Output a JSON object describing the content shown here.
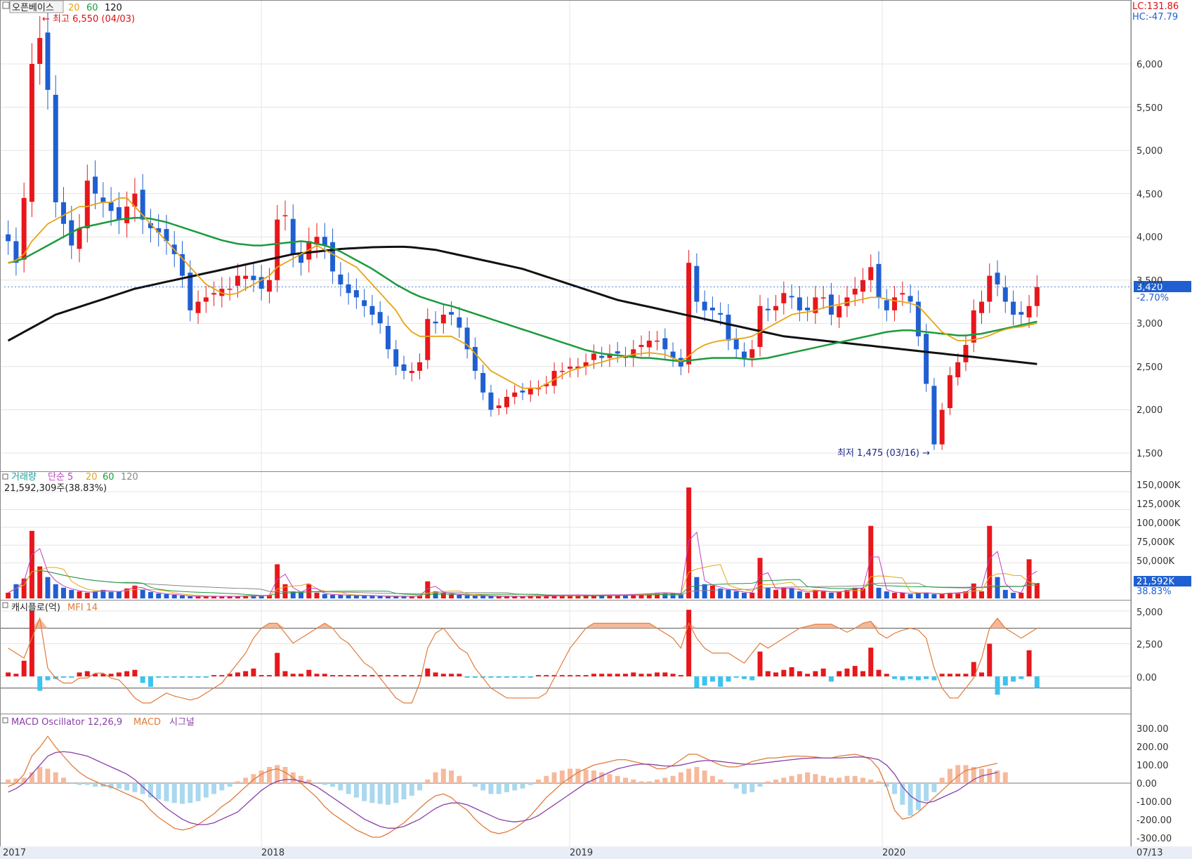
{
  "colors": {
    "up": "#e8171b",
    "down": "#1f5fd1",
    "ma20": "#e6a414",
    "ma60": "#1b9b3c",
    "ma120": "#111111",
    "cash_pos": "#e8171b",
    "cash_neg": "#3cc3ee",
    "mfi": "#e07b39",
    "mfi_fill": "#f4ad86",
    "osc_pos": "#f6b99c",
    "osc_neg": "#a9d8ef",
    "macd": "#e07b39",
    "signal": "#8a3fa8",
    "vol_ma5": "#c040c0",
    "vol_ma20": "#e6a414",
    "vol_ma60": "#1b9b3c",
    "vol_ma120": "#888888",
    "current_tag": "#1f5fd1"
  },
  "price_panel": {
    "title": "오픈베이스",
    "legend": [
      "20",
      "60",
      "120"
    ],
    "lc_label": "LC:131.86",
    "hc_label": "HC:-47.79",
    "high_note": "최고 6,550 (04/03)",
    "low_note": "최저 1,475 (03/16)",
    "current_price": "3,420",
    "current_change": "-2.70%",
    "ticks": [
      "6,000",
      "5,500",
      "5,000",
      "4,500",
      "4,000",
      "3,500",
      "3,000",
      "2,500",
      "2,000",
      "1,500"
    ]
  },
  "volume_panel": {
    "title": "거래량",
    "legend_simple": "단순 5",
    "legend": [
      "20",
      "60",
      "120"
    ],
    "readout": "21,592,309주(38.83%)",
    "current_tag": "21,592K",
    "current_pct": "38.83%",
    "ticks": [
      "150,000K",
      "125,000K",
      "100,000K",
      "75,000K",
      "50,000K"
    ]
  },
  "cashflow_panel": {
    "title": "캐시플로(억)",
    "legend": "MFI 14",
    "ticks": [
      "5,000",
      "2,500",
      "0.00"
    ]
  },
  "macd_panel": {
    "title": "MACD Oscillator 12,26,9",
    "legend_macd": "MACD",
    "legend_signal": "시그널",
    "ticks": [
      "300.00",
      "200.00",
      "100.00",
      "0.00",
      "-100.00",
      "-200.00",
      "-300.00"
    ]
  },
  "x_axis": {
    "labels": [
      "2017",
      "2018",
      "2019",
      "2020"
    ],
    "end_label": "07/13"
  },
  "chart_data": {
    "type": "candlestick",
    "title": "오픈베이스",
    "period": "weekly",
    "y_range_price": [
      1400,
      6600
    ],
    "x_start": "2017-01",
    "x_end": "2020-07-13",
    "highest": {
      "value": 6550,
      "date": "04/03"
    },
    "lowest": {
      "value": 1475,
      "date": "03/16"
    },
    "closes": [
      3950,
      3700,
      4450,
      6000,
      6300,
      5700,
      4400,
      4150,
      3900,
      4100,
      4650,
      4500,
      4400,
      4300,
      4200,
      4350,
      4500,
      4200,
      4100,
      4050,
      3950,
      3800,
      3550,
      3150,
      3250,
      3300,
      3350,
      3400,
      3400,
      3550,
      3550,
      3500,
      3400,
      3500,
      4200,
      4250,
      3800,
      3700,
      3950,
      4000,
      3900,
      3600,
      3450,
      3350,
      3300,
      3200,
      3100,
      3000,
      2700,
      2500,
      2450,
      2450,
      2550,
      3050,
      3000,
      3100,
      3100,
      2950,
      2700,
      2450,
      2200,
      2000,
      2050,
      2150,
      2200,
      2200,
      2250,
      2250,
      2300,
      2450,
      2450,
      2500,
      2500,
      2550,
      2650,
      2600,
      2650,
      2650,
      2600,
      2700,
      2750,
      2800,
      2800,
      2700,
      2600,
      2500,
      3700,
      3250,
      3150,
      3150,
      3100,
      2800,
      2700,
      2600,
      2700,
      3200,
      3150,
      3200,
      3350,
      3300,
      3150,
      3150,
      3300,
      3300,
      3100,
      3200,
      3300,
      3400,
      3500,
      3650,
      3300,
      3150,
      3300,
      3350,
      3250,
      2850,
      2300,
      1600,
      2000,
      2400,
      2550,
      2750,
      3150,
      3250,
      3550,
      3450,
      3250,
      3100,
      3100,
      3200,
      3420
    ],
    "volume_k": [
      8000,
      20000,
      28000,
      95000,
      45000,
      30000,
      20000,
      15000,
      12000,
      10000,
      8000,
      10000,
      12000,
      9000,
      10000,
      14000,
      18000,
      12000,
      9000,
      7000,
      6000,
      5000,
      4000,
      3000,
      3000,
      3000,
      3000,
      3000,
      3000,
      3000,
      4000,
      4000,
      4000,
      5000,
      48000,
      20000,
      10000,
      8000,
      20000,
      8000,
      6000,
      5000,
      5000,
      4000,
      4000,
      4000,
      4000,
      3000,
      3000,
      3000,
      3000,
      3000,
      4000,
      24000,
      10000,
      8000,
      6000,
      5000,
      4000,
      4000,
      4000,
      3000,
      3000,
      3000,
      3000,
      3000,
      4000,
      4000,
      3000,
      4000,
      4000,
      5000,
      5000,
      4000,
      4000,
      5000,
      5000,
      5000,
      5000,
      6000,
      6000,
      7000,
      8000,
      8000,
      7000,
      6000,
      156000,
      30000,
      20000,
      18000,
      14000,
      12000,
      10000,
      8000,
      8000,
      57000,
      15000,
      12000,
      15000,
      14000,
      10000,
      8000,
      12000,
      10000,
      8000,
      10000,
      12000,
      15000,
      14000,
      102000,
      15000,
      10000,
      8000,
      8000,
      6000,
      8000,
      8000,
      6000,
      6000,
      8000,
      8000,
      10000,
      21000,
      10000,
      102000,
      30000,
      12000,
      8000,
      8000,
      55000,
      21592
    ],
    "cashflow": [
      300,
      200,
      1200,
      5000,
      -1100,
      -300,
      -200,
      -100,
      -100,
      300,
      400,
      200,
      200,
      200,
      300,
      400,
      500,
      -500,
      -800,
      -100,
      -100,
      -100,
      -100,
      -100,
      -100,
      -100,
      100,
      100,
      200,
      300,
      400,
      600,
      100,
      100,
      1800,
      400,
      200,
      200,
      500,
      200,
      200,
      100,
      100,
      100,
      100,
      100,
      100,
      100,
      100,
      100,
      100,
      100,
      100,
      600,
      300,
      200,
      200,
      200,
      -100,
      -100,
      -100,
      -100,
      -100,
      -100,
      -100,
      -100,
      -100,
      100,
      100,
      100,
      100,
      100,
      100,
      100,
      200,
      200,
      200,
      200,
      200,
      300,
      200,
      200,
      300,
      300,
      200,
      100,
      5100,
      -900,
      -700,
      -400,
      -800,
      -400,
      -100,
      -200,
      -300,
      1900,
      400,
      300,
      500,
      700,
      400,
      200,
      400,
      600,
      -400,
      400,
      600,
      800,
      400,
      2200,
      500,
      200,
      -200,
      -300,
      -200,
      -300,
      -200,
      -300,
      200,
      200,
      200,
      200,
      1100,
      300,
      2500,
      -1400,
      -700,
      -400,
      -200,
      2000,
      -900
    ],
    "mfi": [
      60,
      55,
      50,
      70,
      90,
      40,
      30,
      25,
      25,
      30,
      30,
      35,
      35,
      30,
      28,
      20,
      10,
      5,
      5,
      10,
      15,
      12,
      10,
      8,
      10,
      15,
      20,
      25,
      35,
      45,
      55,
      70,
      80,
      85,
      85,
      75,
      65,
      70,
      75,
      80,
      85,
      80,
      70,
      65,
      55,
      45,
      40,
      30,
      20,
      10,
      5,
      5,
      25,
      60,
      75,
      80,
      70,
      60,
      55,
      40,
      30,
      20,
      15,
      10,
      10,
      10,
      10,
      10,
      15,
      30,
      45,
      60,
      70,
      80,
      85,
      85,
      85,
      85,
      85,
      85,
      85,
      85,
      80,
      75,
      70,
      60,
      85,
      70,
      60,
      55,
      55,
      55,
      50,
      45,
      55,
      65,
      60,
      65,
      70,
      75,
      80,
      82,
      84,
      84,
      84,
      80,
      76,
      80,
      85,
      87,
      75,
      70,
      75,
      78,
      80,
      78,
      70,
      40,
      20,
      10,
      10,
      20,
      30,
      50,
      80,
      90,
      80,
      75,
      70,
      75,
      80
    ],
    "macd_osc": [
      20,
      25,
      30,
      60,
      90,
      80,
      60,
      30,
      0,
      -10,
      -10,
      -20,
      -20,
      -30,
      -30,
      -40,
      -50,
      -60,
      -80,
      -90,
      -100,
      -110,
      -115,
      -110,
      -100,
      -80,
      -60,
      -40,
      -20,
      10,
      30,
      50,
      70,
      90,
      100,
      90,
      60,
      40,
      20,
      0,
      -10,
      -20,
      -40,
      -60,
      -80,
      -100,
      -110,
      -115,
      -120,
      -110,
      -90,
      -70,
      -40,
      20,
      60,
      80,
      70,
      40,
      0,
      -20,
      -40,
      -60,
      -60,
      -50,
      -40,
      -30,
      -10,
      20,
      40,
      60,
      70,
      80,
      80,
      75,
      70,
      60,
      50,
      40,
      30,
      20,
      10,
      10,
      20,
      30,
      40,
      60,
      80,
      90,
      70,
      40,
      20,
      0,
      -30,
      -60,
      -50,
      -20,
      10,
      20,
      30,
      40,
      50,
      60,
      50,
      40,
      30,
      30,
      40,
      40,
      30,
      20,
      10,
      -20,
      -60,
      -120,
      -180,
      -150,
      -100,
      -50,
      30,
      80,
      100,
      100,
      90,
      80,
      80,
      70,
      60
    ],
    "macd": [
      -20,
      0,
      50,
      150,
      200,
      260,
      200,
      150,
      100,
      60,
      30,
      10,
      -10,
      -20,
      -40,
      -60,
      -80,
      -100,
      -150,
      -190,
      -220,
      -250,
      -260,
      -250,
      -230,
      -200,
      -170,
      -130,
      -100,
      -60,
      -20,
      20,
      50,
      70,
      80,
      60,
      30,
      0,
      -40,
      -80,
      -130,
      -170,
      -200,
      -230,
      -260,
      -280,
      -300,
      -300,
      -280,
      -250,
      -220,
      -180,
      -140,
      -100,
      -70,
      -60,
      -80,
      -120,
      -150,
      -200,
      -240,
      -270,
      -280,
      -270,
      -250,
      -220,
      -180,
      -130,
      -80,
      -40,
      0,
      30,
      60,
      80,
      100,
      110,
      120,
      130,
      130,
      120,
      110,
      100,
      80,
      80,
      100,
      130,
      160,
      160,
      140,
      120,
      100,
      90,
      90,
      100,
      120,
      130,
      140,
      140,
      145,
      150,
      150,
      148,
      145,
      140,
      140,
      150,
      155,
      160,
      150,
      130,
      80,
      -20,
      -150,
      -200,
      -190,
      -160,
      -120,
      -80,
      -40,
      0,
      40,
      70,
      80,
      90,
      100,
      110
    ],
    "signal": [
      -50,
      -30,
      0,
      50,
      100,
      150,
      170,
      175,
      170,
      160,
      150,
      130,
      110,
      90,
      70,
      50,
      20,
      -20,
      -60,
      -100,
      -140,
      -170,
      -200,
      -220,
      -230,
      -230,
      -220,
      -200,
      -180,
      -160,
      -120,
      -80,
      -40,
      -10,
      10,
      20,
      20,
      10,
      0,
      -20,
      -50,
      -80,
      -110,
      -140,
      -170,
      -200,
      -220,
      -240,
      -250,
      -250,
      -240,
      -220,
      -200,
      -170,
      -140,
      -120,
      -110,
      -110,
      -120,
      -140,
      -160,
      -180,
      -200,
      -210,
      -215,
      -210,
      -200,
      -180,
      -150,
      -120,
      -90,
      -60,
      -30,
      0,
      20,
      40,
      60,
      80,
      90,
      100,
      105,
      105,
      100,
      95,
      95,
      100,
      110,
      120,
      125,
      125,
      120,
      115,
      110,
      105,
      105,
      110,
      115,
      120,
      125,
      130,
      135,
      138,
      140,
      140,
      140,
      140,
      142,
      145,
      145,
      140,
      130,
      100,
      50,
      -20,
      -70,
      -100,
      -110,
      -100,
      -80,
      -60,
      -40,
      -10,
      20,
      40,
      50,
      60
    ],
    "ma20": [
      3700,
      3730,
      3800,
      3950,
      4050,
      4150,
      4200,
      4250,
      4300,
      4350,
      4350,
      4380,
      4400,
      4400,
      4450,
      4450,
      4350,
      4250,
      4150,
      4050,
      3950,
      3850,
      3750,
      3650,
      3550,
      3450,
      3400,
      3350,
      3330,
      3350,
      3400,
      3450,
      3500,
      3550,
      3650,
      3700,
      3750,
      3800,
      3850,
      3900,
      3850,
      3800,
      3750,
      3700,
      3650,
      3550,
      3450,
      3350,
      3250,
      3150,
      3000,
      2900,
      2850,
      2850,
      2850,
      2850,
      2850,
      2800,
      2750,
      2650,
      2550,
      2450,
      2400,
      2350,
      2300,
      2250,
      2250,
      2250,
      2300,
      2350,
      2400,
      2450,
      2480,
      2500,
      2530,
      2550,
      2580,
      2600,
      2620,
      2640,
      2650,
      2660,
      2650,
      2640,
      2600,
      2560,
      2620,
      2700,
      2750,
      2780,
      2800,
      2810,
      2820,
      2830,
      2850,
      2900,
      2950,
      3000,
      3050,
      3100,
      3120,
      3130,
      3150,
      3180,
      3200,
      3220,
      3240,
      3260,
      3280,
      3300,
      3300,
      3280,
      3260,
      3250,
      3230,
      3200,
      3100,
      3000,
      2900,
      2850,
      2800,
      2800,
      2810,
      2830,
      2860,
      2900,
      2930,
      2950,
      2960,
      2980,
      3000
    ],
    "ma60": [
      3700,
      3720,
      3750,
      3800,
      3850,
      3900,
      3950,
      4000,
      4050,
      4100,
      4120,
      4140,
      4160,
      4180,
      4200,
      4210,
      4220,
      4220,
      4210,
      4190,
      4170,
      4140,
      4110,
      4080,
      4050,
      4020,
      3990,
      3960,
      3940,
      3920,
      3910,
      3900,
      3900,
      3910,
      3920,
      3930,
      3940,
      3950,
      3940,
      3920,
      3900,
      3870,
      3830,
      3780,
      3730,
      3680,
      3630,
      3570,
      3510,
      3450,
      3400,
      3350,
      3310,
      3280,
      3250,
      3220,
      3200,
      3170,
      3140,
      3110,
      3080,
      3050,
      3020,
      2990,
      2960,
      2930,
      2900,
      2870,
      2840,
      2810,
      2780,
      2750,
      2720,
      2690,
      2670,
      2650,
      2640,
      2630,
      2620,
      2610,
      2600,
      2600,
      2590,
      2580,
      2570,
      2560,
      2570,
      2580,
      2590,
      2600,
      2600,
      2600,
      2600,
      2590,
      2580,
      2590,
      2600,
      2620,
      2640,
      2660,
      2680,
      2700,
      2720,
      2740,
      2760,
      2780,
      2800,
      2820,
      2840,
      2860,
      2880,
      2900,
      2910,
      2920,
      2920,
      2910,
      2900,
      2890,
      2880,
      2870,
      2860,
      2860,
      2870,
      2880,
      2900,
      2920,
      2940,
      2960,
      2980,
      3000,
      3020
    ],
    "ma120": [
      2800,
      2850,
      2900,
      2950,
      3000,
      3050,
      3100,
      3130,
      3160,
      3190,
      3220,
      3250,
      3280,
      3310,
      3340,
      3370,
      3400,
      3420,
      3440,
      3460,
      3480,
      3500,
      3520,
      3540,
      3560,
      3580,
      3600,
      3620,
      3640,
      3660,
      3680,
      3700,
      3720,
      3740,
      3760,
      3780,
      3800,
      3810,
      3820,
      3830,
      3840,
      3850,
      3860,
      3865,
      3870,
      3875,
      3880,
      3882,
      3884,
      3885,
      3885,
      3880,
      3870,
      3860,
      3850,
      3830,
      3810,
      3790,
      3770,
      3750,
      3730,
      3710,
      3690,
      3670,
      3650,
      3630,
      3600,
      3570,
      3540,
      3510,
      3480,
      3450,
      3420,
      3390,
      3360,
      3330,
      3300,
      3270,
      3250,
      3230,
      3210,
      3190,
      3170,
      3150,
      3130,
      3110,
      3090,
      3070,
      3050,
      3030,
      3010,
      2990,
      2970,
      2950,
      2930,
      2910,
      2890,
      2870,
      2850,
      2840,
      2830,
      2820,
      2810,
      2800,
      2790,
      2780,
      2770,
      2760,
      2750,
      2740,
      2730,
      2720,
      2710,
      2700,
      2690,
      2680,
      2670,
      2660,
      2650,
      2640,
      2630,
      2620,
      2610,
      2600,
      2590,
      2580,
      2570,
      2560,
      2550,
      2540,
      2530
    ]
  }
}
